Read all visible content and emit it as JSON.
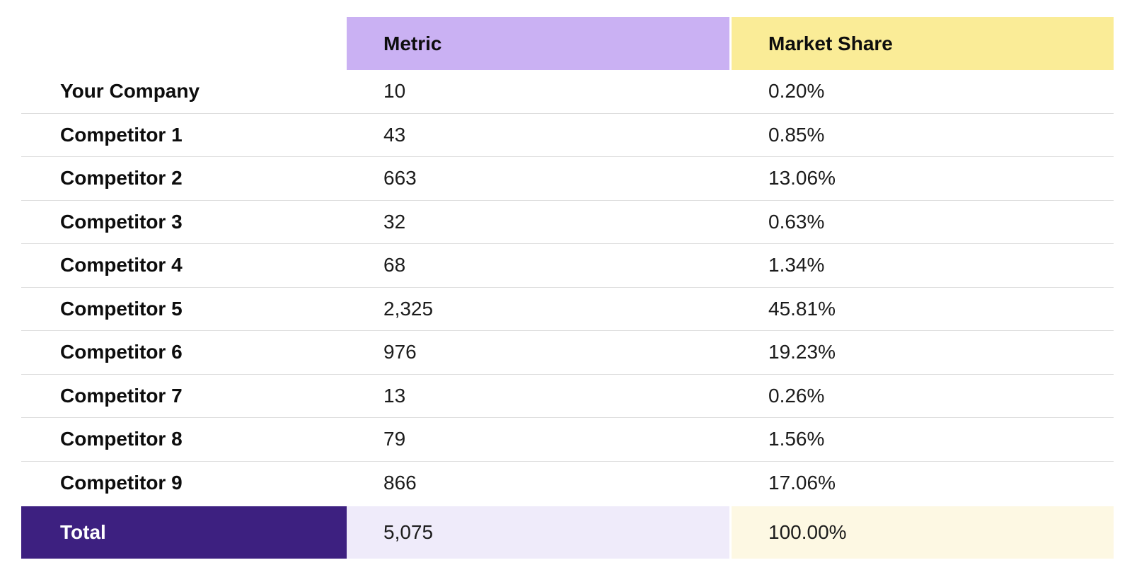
{
  "table": {
    "header": {
      "label_column": "",
      "metric_label": "Metric",
      "market_share_label": "Market Share"
    },
    "rows": [
      {
        "label": "Your Company",
        "metric": "10",
        "market_share": "0.20%"
      },
      {
        "label": "Competitor 1",
        "metric": "43",
        "market_share": "0.85%"
      },
      {
        "label": "Competitor 2",
        "metric": "663",
        "market_share": "13.06%"
      },
      {
        "label": "Competitor 3",
        "metric": "32",
        "market_share": "0.63%"
      },
      {
        "label": "Competitor 4",
        "metric": "68",
        "market_share": "1.34%"
      },
      {
        "label": "Competitor 5",
        "metric": "2,325",
        "market_share": "45.81%"
      },
      {
        "label": "Competitor 6",
        "metric": "976",
        "market_share": "19.23%"
      },
      {
        "label": "Competitor 7",
        "metric": "13",
        "market_share": "0.26%"
      },
      {
        "label": "Competitor 8",
        "metric": "79",
        "market_share": "1.56%"
      },
      {
        "label": "Competitor 9",
        "metric": "866",
        "market_share": "17.06%"
      }
    ],
    "total": {
      "label": "Total",
      "metric": "5,075",
      "market_share": "100.00%"
    }
  },
  "colors": {
    "metric_header_bg": "#cab1f3",
    "market_share_header_bg": "#faec97",
    "total_label_bg": "#3d2080",
    "total_metric_bg": "#efebfa",
    "total_market_share_bg": "#fdf8e3",
    "row_separator": "#dedede",
    "total_label_text": "#ffffff",
    "body_text": "#111111"
  },
  "chart_data": {
    "type": "table",
    "title": "",
    "columns": [
      "",
      "Metric",
      "Market Share"
    ],
    "rows": [
      [
        "Your Company",
        10,
        "0.20%"
      ],
      [
        "Competitor 1",
        43,
        "0.85%"
      ],
      [
        "Competitor 2",
        663,
        "13.06%"
      ],
      [
        "Competitor 3",
        32,
        "0.63%"
      ],
      [
        "Competitor 4",
        68,
        "1.34%"
      ],
      [
        "Competitor 5",
        2325,
        "45.81%"
      ],
      [
        "Competitor 6",
        976,
        "19.23%"
      ],
      [
        "Competitor 7",
        13,
        "0.26%"
      ],
      [
        "Competitor 8",
        79,
        "1.56%"
      ],
      [
        "Competitor 9",
        866,
        "17.06%"
      ],
      [
        "Total",
        5075,
        "100.00%"
      ]
    ]
  }
}
